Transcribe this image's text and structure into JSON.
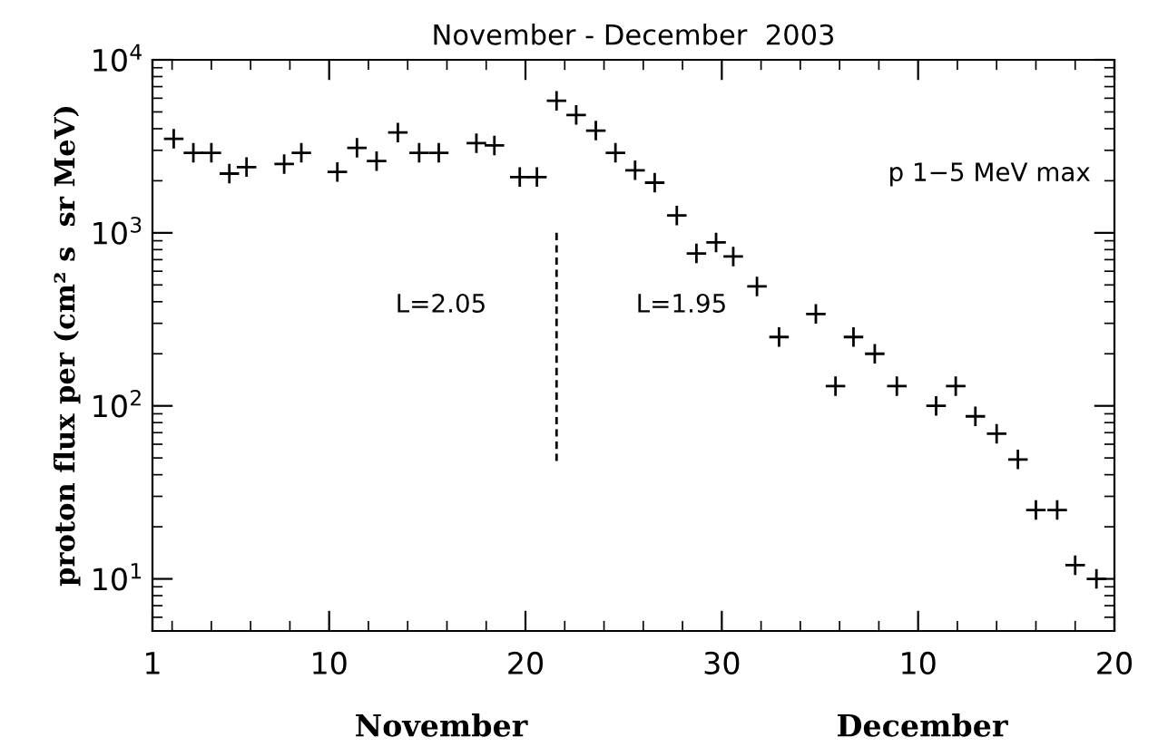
{
  "chart_data": {
    "type": "scatter",
    "title": "November - December  2003",
    "ylabel": "proton flux per (cm² s  sr MeV)",
    "annotations": [
      "L=2.05",
      "L=1.95",
      "p 1−5 MeV max",
      "November",
      "December"
    ],
    "log": "y",
    "marker": "cross",
    "grid": false,
    "xlim": [
      "2003-11-01",
      "2003-12-20"
    ],
    "xticks": [
      {
        "value": "2003-11-01",
        "label": "1"
      },
      {
        "value": "2003-11-10",
        "label": "10"
      },
      {
        "value": "2003-11-20",
        "label": "20"
      },
      {
        "value": "2003-11-30",
        "label": "30"
      },
      {
        "value": "2003-12-10",
        "label": "10"
      },
      {
        "value": "2003-12-20",
        "label": "20"
      }
    ],
    "ylim": [
      5,
      10000
    ],
    "yticks": [
      {
        "value": 10,
        "label": "10$^{1}$"
      },
      {
        "value": 100,
        "label": "10$^{2}$"
      },
      {
        "value": 1000,
        "label": "10$^{3}$"
      },
      {
        "value": 10000,
        "label": "10$^{4}$"
      }
    ],
    "series": [
      {
        "color": "#000000",
        "x": [
          "2003-11-02T02:00",
          "2003-11-03T02:00",
          "2003-11-04T00:00",
          "2003-11-04T22:00",
          "2003-11-05T19:00",
          "2003-11-07T17:00",
          "2003-11-08T14:00",
          "2003-11-10T10:00",
          "2003-11-11T10:00",
          "2003-11-12T10:00",
          "2003-11-13T12:00",
          "2003-11-14T14:00",
          "2003-11-15T14:00",
          "2003-11-17T12:00",
          "2003-11-18T10:00",
          "2003-11-19T17:00",
          "2003-11-20T14:00",
          "2003-11-21T14:00",
          "2003-11-22T14:00",
          "2003-11-23T14:00",
          "2003-11-24T14:00",
          "2003-11-25T14:00",
          "2003-11-26T14:00",
          "2003-11-27T17:00",
          "2003-11-28T17:00",
          "2003-11-29T17:00",
          "2003-11-30T14:00",
          "2003-12-01T19:00",
          "2003-12-02T22:00",
          "2003-12-04T19:00",
          "2003-12-05T19:00",
          "2003-12-06T17:00",
          "2003-12-07T19:00",
          "2003-12-08T22:00",
          "2003-12-10T22:00",
          "2003-12-11T22:00",
          "2003-12-12T22:00",
          "2003-12-14T00:00",
          "2003-12-15T02:00",
          "2003-12-16T00:00",
          "2003-12-17T02:00",
          "2003-12-18T00:00",
          "2003-12-19T02:00"
        ],
        "values": [
          3500,
          2900,
          2900,
          2200,
          2400,
          2500,
          2900,
          2250,
          3100,
          2600,
          3800,
          2900,
          2900,
          3300,
          3200,
          2100,
          2100,
          5800,
          4800,
          3900,
          2900,
          2300,
          1950,
          1260,
          760,
          880,
          730,
          490,
          250,
          340,
          130,
          250,
          200,
          130,
          100,
          130,
          87,
          69,
          49,
          25,
          25,
          12,
          10
        ]
      },
      {
        "type": "line",
        "color": "#000000",
        "line_style": "dashed",
        "marker": "none",
        "x": [
          "2003-11-21T14:00",
          "2003-11-21T14:00"
        ],
        "values": [
          1000,
          48
        ]
      }
    ]
  }
}
